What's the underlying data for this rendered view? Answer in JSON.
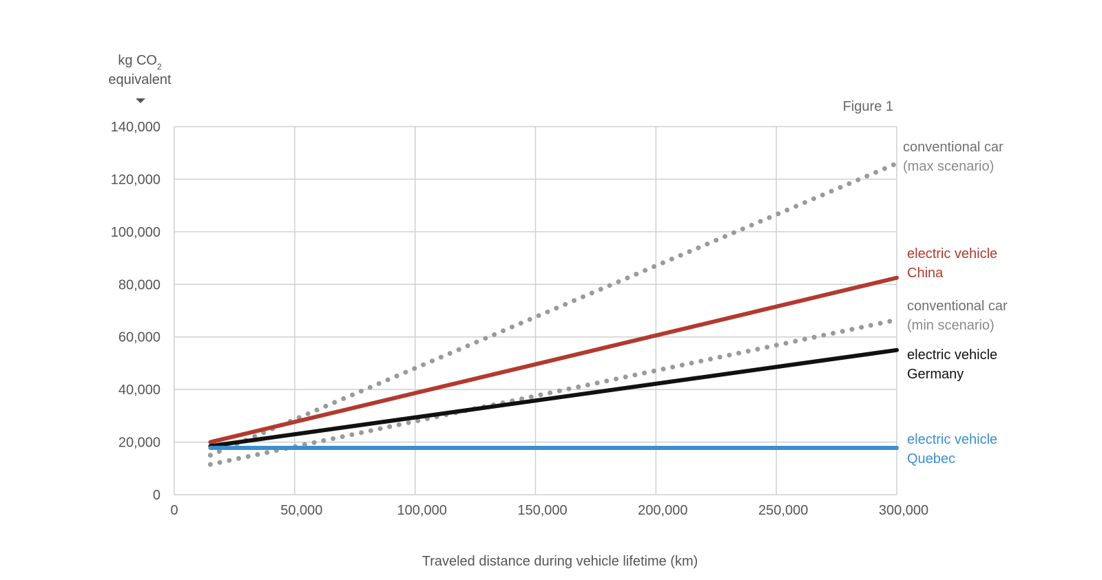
{
  "chart_data": {
    "type": "line",
    "figure_label": "Figure 1",
    "ylabel": {
      "line1": "kg CO",
      "subscript": "2",
      "line2": "equivalent"
    },
    "xlabel": "Traveled distance during vehicle lifetime (km)",
    "xlim": [
      0,
      300000
    ],
    "ylim": [
      0,
      140000
    ],
    "x_ticks": [
      0,
      50000,
      100000,
      150000,
      200000,
      250000,
      300000
    ],
    "y_ticks": [
      0,
      20000,
      40000,
      60000,
      80000,
      100000,
      120000,
      140000
    ],
    "grid": true,
    "series": [
      {
        "name": "conventional car (max scenario)",
        "label_lines": [
          "conventional car",
          "(max scenario)"
        ],
        "label_weights": [
          "normal",
          "light"
        ],
        "x": [
          15000,
          300000
        ],
        "y": [
          15000,
          126000
        ],
        "style": "dotted",
        "color": "#9a9a9a"
      },
      {
        "name": "electric vehicle China",
        "label_lines": [
          "electric vehicle",
          "China"
        ],
        "label_weights": [
          "normal",
          "normal"
        ],
        "x": [
          15000,
          300000
        ],
        "y": [
          20000,
          82500
        ],
        "style": "solid",
        "color": "#b23a2e"
      },
      {
        "name": "conventional car (min scenario)",
        "label_lines": [
          "conventional car",
          "(min scenario)"
        ],
        "label_weights": [
          "normal",
          "light"
        ],
        "x": [
          15000,
          300000
        ],
        "y": [
          11500,
          66500
        ],
        "style": "dotted",
        "color": "#9a9a9a"
      },
      {
        "name": "electric vehicle Germany",
        "label_lines": [
          "electric vehicle",
          "Germany"
        ],
        "label_weights": [
          "normal",
          "normal"
        ],
        "x": [
          15000,
          300000
        ],
        "y": [
          18500,
          55000
        ],
        "style": "solid",
        "color": "#111111"
      },
      {
        "name": "electric vehicle Quebec",
        "label_lines": [
          "electric vehicle",
          "Quebec"
        ],
        "label_weights": [
          "normal",
          "normal"
        ],
        "x": [
          15000,
          300000
        ],
        "y": [
          17800,
          17800
        ],
        "style": "solid",
        "color": "#3b8fd0"
      }
    ]
  }
}
